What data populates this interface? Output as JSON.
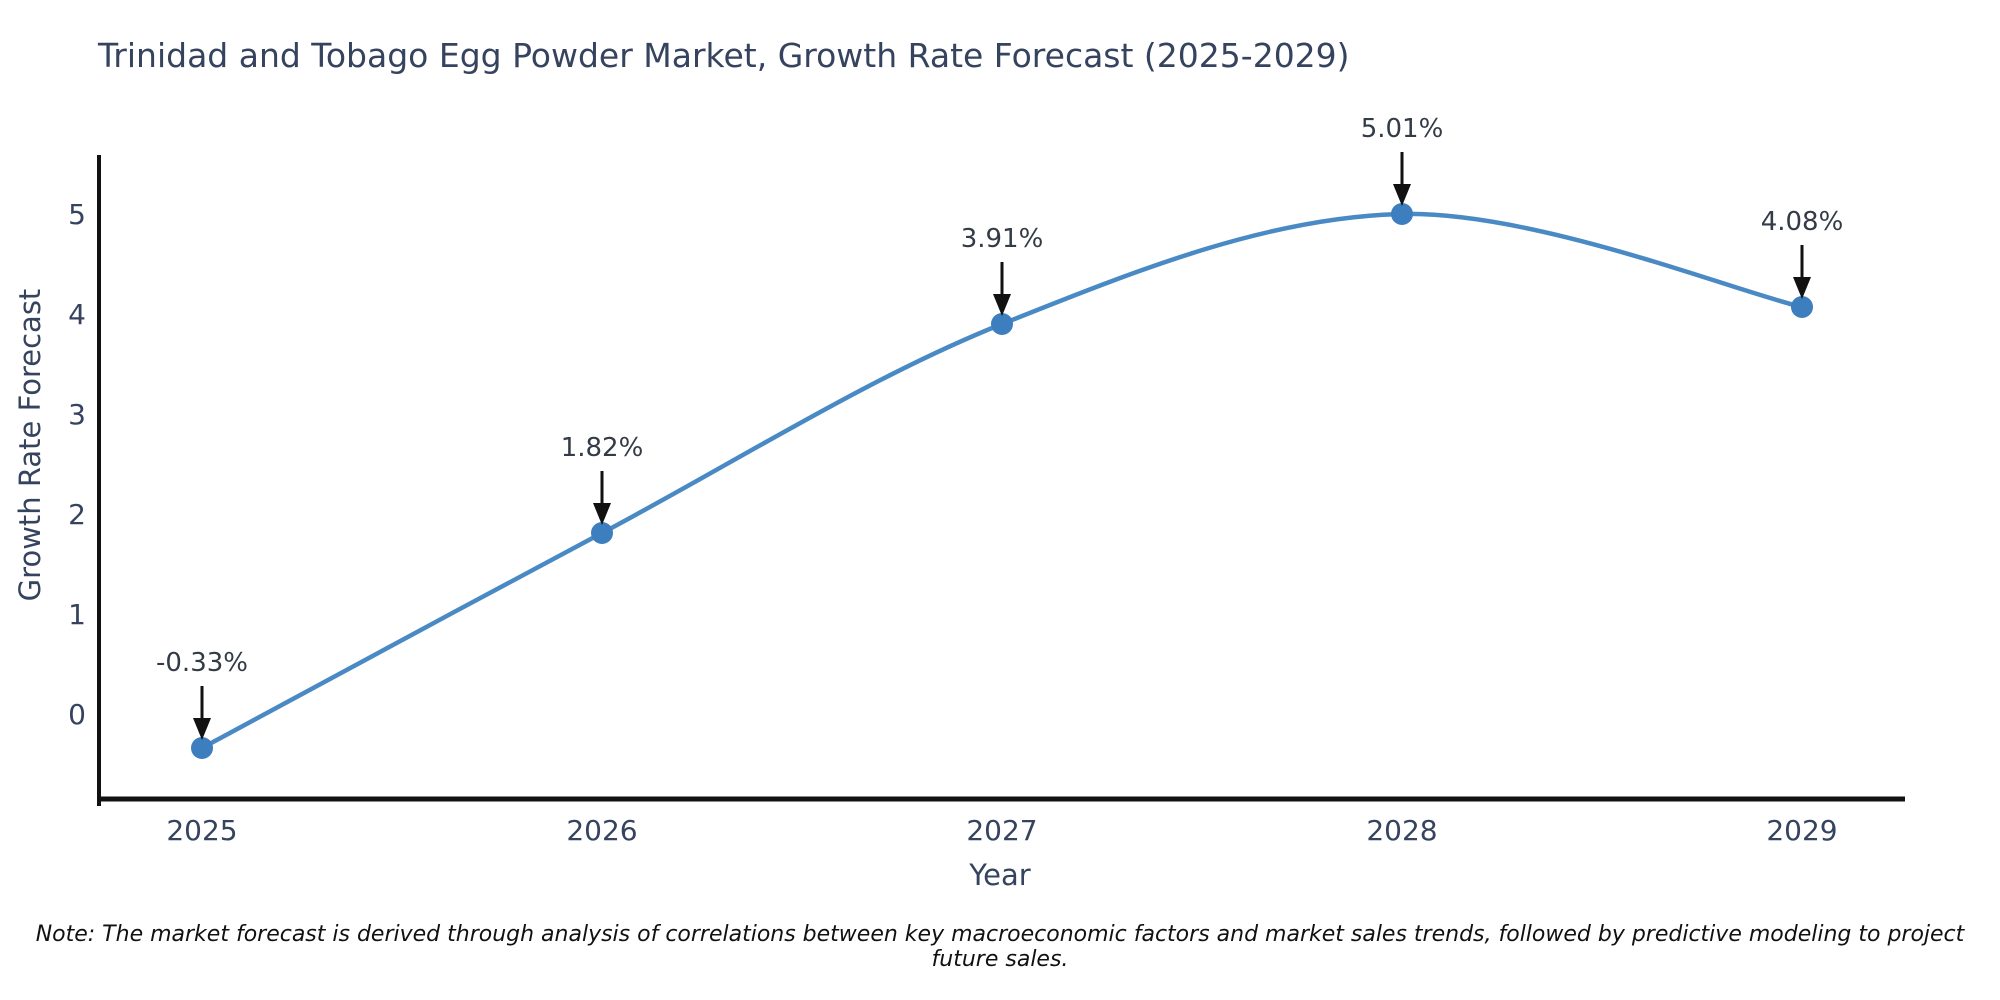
{
  "chart_data": {
    "type": "line",
    "title": "Trinidad and Tobago Egg Powder Market, Growth Rate Forecast (2025-2029)",
    "x": [
      2025,
      2026,
      2027,
      2028,
      2029
    ],
    "series": [
      {
        "name": "Growth Rate Forecast",
        "values": [
          -0.33,
          1.82,
          3.91,
          5.01,
          4.08
        ]
      }
    ],
    "point_labels": [
      "-0.33%",
      "1.82%",
      "3.91%",
      "5.01%",
      "4.08%"
    ],
    "xlabel": "Year",
    "ylabel": "Growth Rate Forecast",
    "yticks": [
      0,
      1,
      2,
      3,
      4,
      5
    ],
    "ylim": [
      -0.9,
      5.6
    ],
    "line_shape": "spline",
    "grid": false,
    "legend_position": "none",
    "colors": {
      "line": "#4a8ac4",
      "marker": "#3d7ebf",
      "axis": "#111111",
      "arrow": "#111111",
      "text": "#36435f",
      "annotation_text": "#333b47",
      "background": "#ffffff"
    }
  },
  "footnote": {
    "text": "Note: The market forecast is derived through analysis of correlations between key macroeconomic factors and market sales trends, followed by predictive modeling to project future sales."
  }
}
